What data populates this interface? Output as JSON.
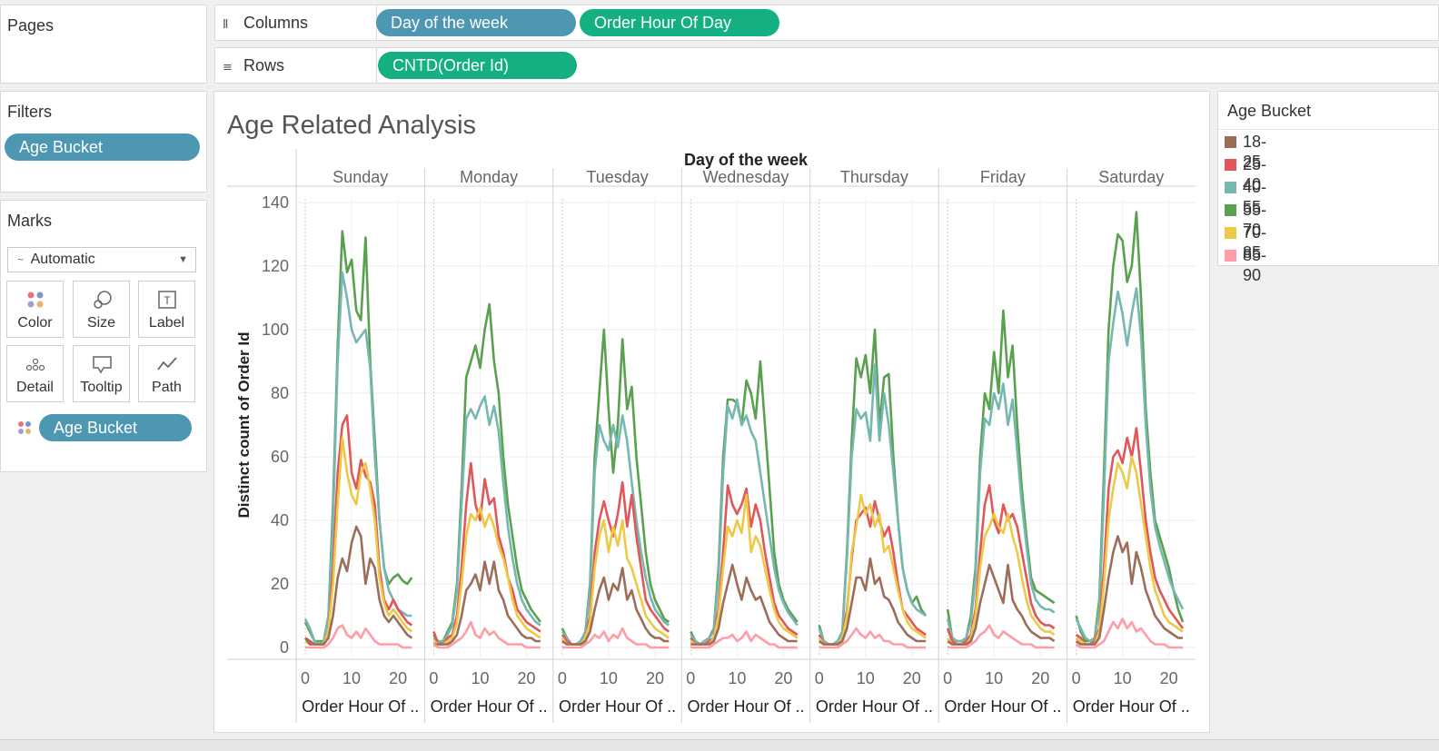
{
  "shelves": {
    "pages_title": "Pages",
    "columns_label": "Columns",
    "rows_label": "Rows",
    "columns_pills": [
      "Day of the week",
      "Order Hour Of Day"
    ],
    "rows_pills": [
      "CNTD(Order Id)"
    ]
  },
  "filters": {
    "title": "Filters",
    "pill": "Age Bucket"
  },
  "marks": {
    "title": "Marks",
    "mark_type": "Automatic",
    "buttons": [
      "Color",
      "Size",
      "Label",
      "Detail",
      "Tooltip",
      "Path"
    ],
    "color_pill": "Age Bucket"
  },
  "legend": {
    "title": "Age Bucket",
    "items": [
      {
        "label": "18-25",
        "color": "#9c6e5a"
      },
      {
        "label": "25-40",
        "color": "#e15759"
      },
      {
        "label": "40-55",
        "color": "#76b7b2"
      },
      {
        "label": "55-70",
        "color": "#59a14f"
      },
      {
        "label": "70-85",
        "color": "#edc948"
      },
      {
        "label": "85-90",
        "color": "#ff9da7"
      }
    ]
  },
  "chart_data": {
    "type": "line",
    "title": "Age Related Analysis",
    "column_header": "Day of the week",
    "panels": [
      "Sunday",
      "Monday",
      "Tuesday",
      "Wednesday",
      "Thursday",
      "Friday",
      "Saturday"
    ],
    "xlabel": "Order Hour Of ..",
    "ylabel": "Distinct count of Order Id",
    "xlim": [
      0,
      23
    ],
    "ylim": [
      0,
      140
    ],
    "x_ticks": [
      0,
      10,
      20
    ],
    "y_ticks": [
      0,
      20,
      40,
      60,
      80,
      100,
      120,
      140
    ],
    "grid": true,
    "legend_position": "right",
    "x": [
      0,
      1,
      2,
      3,
      4,
      5,
      6,
      7,
      8,
      9,
      10,
      11,
      12,
      13,
      14,
      15,
      16,
      17,
      18,
      19,
      20,
      21,
      22,
      23
    ],
    "series": [
      {
        "name": "55-70",
        "color": "#59a14f",
        "values": [
          [
            8,
            5,
            2,
            2,
            2,
            10,
            45,
            95,
            131,
            118,
            122,
            106,
            103,
            129,
            90,
            65,
            40,
            25,
            20,
            22,
            23,
            21,
            20,
            22
          ],
          [
            4,
            1,
            2,
            5,
            8,
            20,
            50,
            85,
            90,
            95,
            88,
            100,
            108,
            90,
            80,
            60,
            45,
            35,
            25,
            18,
            15,
            12,
            10,
            8
          ],
          [
            6,
            3,
            1,
            1,
            2,
            5,
            20,
            60,
            80,
            100,
            75,
            55,
            70,
            97,
            75,
            82,
            60,
            45,
            30,
            20,
            15,
            12,
            9,
            8
          ],
          [
            5,
            2,
            1,
            2,
            3,
            6,
            25,
            60,
            78,
            78,
            77,
            70,
            84,
            80,
            72,
            90,
            70,
            50,
            30,
            20,
            15,
            12,
            10,
            8
          ],
          [
            7,
            2,
            1,
            1,
            2,
            5,
            30,
            65,
            91,
            85,
            92,
            80,
            100,
            70,
            85,
            86,
            60,
            40,
            25,
            18,
            14,
            16,
            12,
            10
          ],
          [
            12,
            3,
            2,
            2,
            3,
            10,
            25,
            60,
            80,
            75,
            93,
            80,
            106,
            85,
            95,
            70,
            50,
            35,
            22,
            18,
            17,
            16,
            15,
            14
          ],
          [
            10,
            5,
            2,
            2,
            3,
            15,
            55,
            100,
            120,
            130,
            128,
            115,
            120,
            137,
            110,
            75,
            55,
            40,
            35,
            30,
            25,
            18,
            12,
            8
          ]
        ]
      },
      {
        "name": "40-55",
        "color": "#76b7b2",
        "values": [
          [
            9,
            6,
            2,
            1,
            2,
            10,
            40,
            90,
            118,
            110,
            100,
            96,
            98,
            100,
            88,
            60,
            40,
            25,
            18,
            15,
            12,
            11,
            10,
            10
          ],
          [
            3,
            2,
            2,
            4,
            7,
            18,
            45,
            72,
            75,
            72,
            76,
            79,
            70,
            76,
            68,
            52,
            38,
            28,
            20,
            15,
            12,
            10,
            8,
            7
          ],
          [
            5,
            3,
            1,
            1,
            2,
            5,
            18,
            55,
            70,
            65,
            62,
            70,
            63,
            73,
            65,
            52,
            40,
            30,
            22,
            16,
            12,
            10,
            8,
            7
          ],
          [
            4,
            2,
            1,
            2,
            3,
            5,
            22,
            55,
            76,
            72,
            78,
            70,
            73,
            68,
            65,
            55,
            45,
            35,
            25,
            18,
            14,
            11,
            9,
            7
          ],
          [
            6,
            2,
            1,
            1,
            2,
            5,
            28,
            60,
            75,
            72,
            74,
            65,
            89,
            65,
            80,
            70,
            55,
            40,
            25,
            18,
            14,
            12,
            11,
            10
          ],
          [
            9,
            3,
            2,
            2,
            3,
            8,
            22,
            55,
            72,
            70,
            80,
            75,
            83,
            70,
            78,
            62,
            45,
            32,
            20,
            15,
            13,
            12,
            12,
            11
          ],
          [
            9,
            6,
            3,
            2,
            3,
            12,
            48,
            90,
            102,
            112,
            105,
            95,
            105,
            113,
            98,
            70,
            50,
            38,
            32,
            27,
            22,
            18,
            15,
            12
          ]
        ]
      },
      {
        "name": "25-40",
        "color": "#e15759",
        "values": [
          [
            3,
            2,
            1,
            1,
            1,
            5,
            25,
            55,
            70,
            73,
            55,
            50,
            59,
            54,
            52,
            45,
            25,
            15,
            12,
            15,
            12,
            10,
            8,
            7
          ],
          [
            5,
            1,
            1,
            3,
            4,
            10,
            25,
            45,
            58,
            45,
            40,
            53,
            45,
            47,
            35,
            30,
            22,
            18,
            12,
            10,
            8,
            7,
            6,
            5
          ],
          [
            4,
            2,
            1,
            1,
            1,
            3,
            10,
            30,
            40,
            46,
            40,
            35,
            42,
            52,
            38,
            48,
            35,
            25,
            15,
            12,
            10,
            8,
            6,
            5
          ],
          [
            3,
            1,
            1,
            1,
            2,
            3,
            12,
            30,
            51,
            45,
            42,
            45,
            50,
            38,
            45,
            40,
            30,
            22,
            14,
            10,
            8,
            6,
            5,
            4
          ],
          [
            4,
            1,
            1,
            1,
            1,
            3,
            12,
            28,
            40,
            42,
            44,
            38,
            46,
            40,
            35,
            38,
            30,
            20,
            12,
            10,
            8,
            6,
            5,
            4
          ],
          [
            6,
            2,
            1,
            1,
            2,
            4,
            12,
            30,
            45,
            51,
            40,
            36,
            45,
            40,
            42,
            38,
            30,
            22,
            14,
            10,
            8,
            7,
            7,
            6
          ],
          [
            4,
            3,
            1,
            1,
            2,
            6,
            25,
            50,
            60,
            62,
            58,
            66,
            60,
            69,
            55,
            40,
            30,
            22,
            18,
            15,
            12,
            10,
            8,
            6
          ]
        ]
      },
      {
        "name": "70-85",
        "color": "#edc948",
        "values": [
          [
            2,
            1,
            1,
            1,
            1,
            5,
            20,
            45,
            66,
            55,
            48,
            45,
            55,
            58,
            50,
            40,
            22,
            14,
            10,
            12,
            10,
            8,
            6,
            5
          ],
          [
            2,
            1,
            1,
            2,
            3,
            8,
            20,
            35,
            42,
            40,
            44,
            38,
            42,
            38,
            32,
            28,
            22,
            15,
            10,
            8,
            6,
            5,
            4,
            3
          ],
          [
            3,
            1,
            1,
            1,
            1,
            3,
            8,
            25,
            35,
            40,
            30,
            38,
            32,
            40,
            28,
            25,
            20,
            15,
            10,
            8,
            6,
            5,
            4,
            3
          ],
          [
            2,
            1,
            1,
            1,
            1,
            3,
            10,
            25,
            38,
            35,
            40,
            36,
            48,
            30,
            35,
            32,
            25,
            18,
            12,
            8,
            6,
            5,
            4,
            3
          ],
          [
            3,
            1,
            1,
            1,
            1,
            3,
            10,
            30,
            38,
            48,
            42,
            45,
            38,
            42,
            30,
            32,
            25,
            18,
            12,
            8,
            6,
            5,
            4,
            3
          ],
          [
            3,
            1,
            1,
            1,
            1,
            3,
            10,
            25,
            35,
            38,
            42,
            38,
            36,
            42,
            35,
            30,
            22,
            15,
            10,
            8,
            6,
            5,
            5,
            4
          ],
          [
            3,
            2,
            1,
            1,
            1,
            5,
            20,
            40,
            50,
            58,
            55,
            50,
            60,
            55,
            45,
            35,
            25,
            18,
            14,
            10,
            8,
            7,
            6,
            5
          ]
        ]
      },
      {
        "name": "18-25",
        "color": "#9c6e5a",
        "values": [
          [
            3,
            1,
            1,
            1,
            1,
            3,
            10,
            22,
            28,
            24,
            33,
            38,
            35,
            20,
            28,
            25,
            15,
            10,
            8,
            10,
            8,
            6,
            4,
            3
          ],
          [
            1,
            1,
            1,
            1,
            2,
            4,
            10,
            18,
            20,
            23,
            18,
            27,
            20,
            27,
            18,
            15,
            10,
            8,
            6,
            4,
            3,
            3,
            2,
            2
          ],
          [
            2,
            1,
            1,
            1,
            1,
            2,
            5,
            12,
            18,
            22,
            15,
            20,
            18,
            25,
            15,
            18,
            12,
            9,
            6,
            4,
            3,
            3,
            2,
            2
          ],
          [
            1,
            1,
            1,
            1,
            1,
            2,
            6,
            14,
            20,
            26,
            20,
            15,
            22,
            18,
            15,
            16,
            12,
            8,
            6,
            4,
            3,
            2,
            2,
            2
          ],
          [
            2,
            1,
            1,
            1,
            1,
            2,
            6,
            14,
            22,
            22,
            18,
            28,
            20,
            22,
            16,
            15,
            12,
            8,
            6,
            4,
            3,
            2,
            2,
            2
          ],
          [
            2,
            1,
            1,
            1,
            1,
            2,
            6,
            14,
            20,
            26,
            22,
            18,
            14,
            26,
            15,
            12,
            10,
            7,
            5,
            4,
            3,
            3,
            3,
            2
          ],
          [
            2,
            1,
            1,
            1,
            1,
            3,
            12,
            22,
            30,
            35,
            30,
            33,
            20,
            30,
            25,
            18,
            14,
            10,
            8,
            6,
            5,
            4,
            3,
            3
          ]
        ]
      },
      {
        "name": "85-90",
        "color": "#ff9da7",
        "values": [
          [
            0,
            0,
            0,
            0,
            0,
            1,
            3,
            6,
            7,
            4,
            3,
            5,
            3,
            6,
            4,
            2,
            1,
            1,
            1,
            1,
            1,
            0,
            0,
            0
          ],
          [
            1,
            0,
            0,
            0,
            1,
            2,
            3,
            5,
            8,
            4,
            3,
            6,
            4,
            5,
            3,
            2,
            1,
            1,
            1,
            1,
            0,
            0,
            0,
            0
          ],
          [
            0,
            0,
            0,
            0,
            0,
            1,
            2,
            4,
            3,
            5,
            2,
            4,
            3,
            6,
            3,
            2,
            1,
            1,
            1,
            0,
            0,
            0,
            0,
            0
          ],
          [
            0,
            0,
            0,
            0,
            0,
            1,
            2,
            3,
            3,
            4,
            2,
            3,
            5,
            2,
            4,
            3,
            2,
            1,
            1,
            0,
            0,
            0,
            0,
            0
          ],
          [
            0,
            0,
            0,
            0,
            0,
            1,
            2,
            4,
            6,
            4,
            3,
            5,
            3,
            4,
            2,
            2,
            1,
            1,
            1,
            0,
            0,
            0,
            0,
            0
          ],
          [
            0,
            0,
            0,
            0,
            0,
            1,
            2,
            4,
            5,
            7,
            4,
            3,
            5,
            4,
            3,
            2,
            1,
            1,
            1,
            0,
            0,
            0,
            0,
            0
          ],
          [
            1,
            0,
            0,
            0,
            0,
            1,
            2,
            5,
            8,
            6,
            9,
            6,
            8,
            5,
            6,
            4,
            2,
            1,
            1,
            1,
            0,
            0,
            0,
            0
          ]
        ]
      }
    ]
  }
}
